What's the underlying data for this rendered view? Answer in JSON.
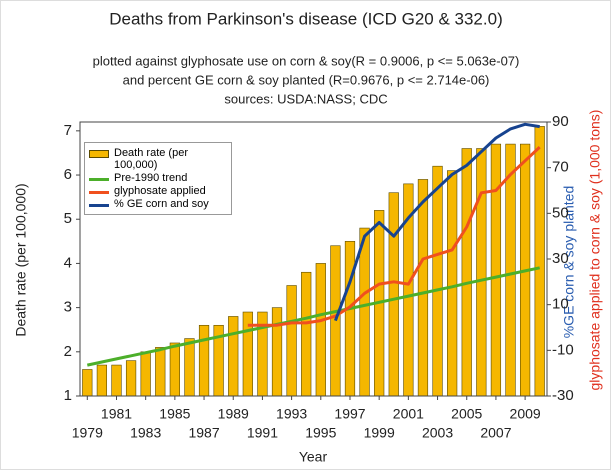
{
  "chart_data": {
    "type": "bar",
    "title": "Deaths from Parkinson's disease (ICD G20 & 332.0)",
    "subtitle": [
      "plotted against glyphosate use on corn & soy(R = 0.9006, p <= 5.063e-07)",
      "and percent GE corn & soy planted (R=0.9676, p <= 2.714e-06)",
      "sources: USDA:NASS; CDC"
    ],
    "xlabel": "Year",
    "ylabel": "Death rate (per 100,000)",
    "y2label": [
      "%GE corn & soy planted",
      "glyphosate applied to corn & soy (1,000 tons)"
    ],
    "categories": [
      "1979",
      null,
      "1981",
      null,
      "1983",
      null,
      "1985",
      null,
      "1987",
      null,
      "1989",
      null,
      "1991",
      null,
      "1993",
      null,
      "1995",
      null,
      "1997",
      null,
      "1999",
      null,
      "2001",
      null,
      "2003",
      null,
      "2005",
      null,
      "2007",
      null,
      "2009",
      null
    ],
    "ylim": [
      1,
      7.2
    ],
    "yticks": [
      1,
      2,
      3,
      4,
      5,
      6,
      7
    ],
    "y2lim": [
      -30,
      90
    ],
    "y2ticks": [
      -30,
      -10,
      10,
      30,
      50,
      70,
      90
    ],
    "series": [
      {
        "name": "Death rate (per 100,000)",
        "type": "bar",
        "color": "#f5b700",
        "values": [
          1.6,
          1.7,
          1.7,
          1.8,
          2.0,
          2.1,
          2.2,
          2.3,
          2.6,
          2.6,
          2.8,
          2.9,
          2.9,
          3.0,
          3.5,
          3.8,
          4.0,
          4.4,
          4.5,
          4.8,
          5.2,
          5.6,
          5.8,
          5.9,
          6.2,
          6.1,
          6.6,
          6.6,
          6.7,
          6.7,
          6.7,
          7.1
        ]
      },
      {
        "name": "Pre-1990 trend",
        "type": "line",
        "color": "#4caf2a",
        "values": [
          1.7,
          1.77,
          1.84,
          1.91,
          1.98,
          2.05,
          2.13,
          2.2,
          2.27,
          2.34,
          2.41,
          2.48,
          2.55,
          2.62,
          2.69,
          2.76,
          2.84,
          2.91,
          2.98,
          3.05,
          3.12,
          3.19,
          3.26,
          3.33,
          3.4,
          3.47,
          3.55,
          3.62,
          3.69,
          3.76,
          3.83,
          3.9
        ]
      },
      {
        "name": "glyphosate applied",
        "type": "line",
        "axis": "y2",
        "color": "#f0501e",
        "values": [
          null,
          null,
          null,
          null,
          null,
          null,
          null,
          null,
          null,
          null,
          null,
          1,
          1,
          1,
          2,
          2,
          3,
          5,
          9,
          15,
          19,
          20,
          19,
          30,
          32,
          34,
          44,
          59,
          60,
          67,
          73,
          79
        ]
      },
      {
        "name": "% GE corn and soy",
        "type": "line",
        "axis": "y2",
        "color": "#17438f",
        "values": [
          null,
          null,
          null,
          null,
          null,
          null,
          null,
          null,
          null,
          null,
          null,
          null,
          null,
          null,
          null,
          null,
          null,
          3,
          20,
          40,
          46,
          40,
          48,
          55,
          61,
          67,
          71,
          77,
          83,
          87,
          89,
          88
        ]
      }
    ]
  }
}
